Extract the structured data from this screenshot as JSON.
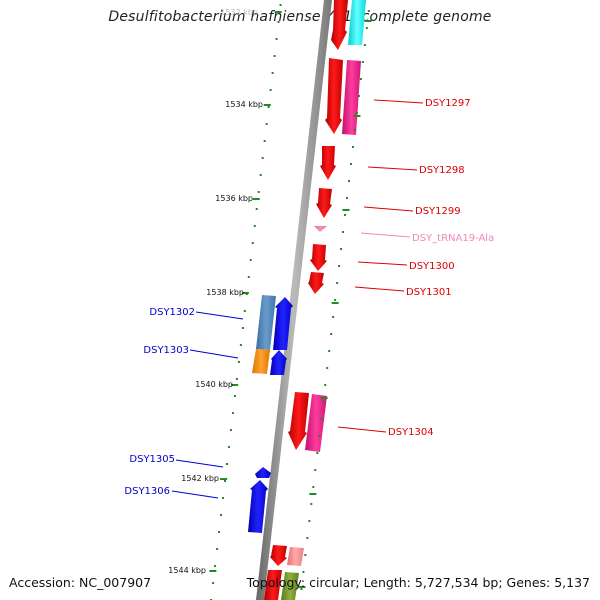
{
  "title": "Desulfitobacterium hafniense Y51, complete genome",
  "accession": "Accession: NC_007907",
  "topology": "Topology: circular; Length: 5,727,534 bp; Genes: 5,137",
  "ruler": [
    {
      "label": "1532 kbp",
      "faded": true
    },
    {
      "label": "1534 kbp"
    },
    {
      "label": "1536 kbp"
    },
    {
      "label": "1538 kbp"
    },
    {
      "label": "1540 kbp"
    },
    {
      "label": "1542 kbp"
    },
    {
      "label": "1544 kbp"
    }
  ],
  "gene_labels": [
    {
      "id": "g1297",
      "text": "DSY1297",
      "strand": "+",
      "color": "#dd0000"
    },
    {
      "id": "g1298",
      "text": "DSY1298",
      "strand": "+",
      "color": "#dd0000"
    },
    {
      "id": "g1299",
      "text": "DSY1299",
      "strand": "+",
      "color": "#dd0000"
    },
    {
      "id": "gtrna",
      "text": "DSY_tRNA19-Ala",
      "strand": "+",
      "color": "#ee88bb"
    },
    {
      "id": "g1300",
      "text": "DSY1300",
      "strand": "+",
      "color": "#dd0000"
    },
    {
      "id": "g1301",
      "text": "DSY1301",
      "strand": "+",
      "color": "#dd0000"
    },
    {
      "id": "g1302",
      "text": "DSY1302",
      "strand": "-",
      "color": "#0000cc"
    },
    {
      "id": "g1303",
      "text": "DSY1303",
      "strand": "-",
      "color": "#0000cc"
    },
    {
      "id": "g1304",
      "text": "DSY1304",
      "strand": "+",
      "color": "#dd0000"
    },
    {
      "id": "g1305",
      "text": "DSY1305",
      "strand": "-",
      "color": "#0000cc"
    },
    {
      "id": "g1306",
      "text": "DSY1306",
      "strand": "-",
      "color": "#0000cc"
    }
  ],
  "colors": {
    "backbone": "#888888",
    "tick": "#228b22",
    "forward_cds": "#ff0000",
    "forward_cog": "#ff1493",
    "reverse_cds": "#0000ff",
    "reverse_cog": "#4682b4",
    "reverse_cog_alt": "#ff8c00",
    "trna": "#ffb6c1",
    "cog_cyan": "#00ffff"
  }
}
